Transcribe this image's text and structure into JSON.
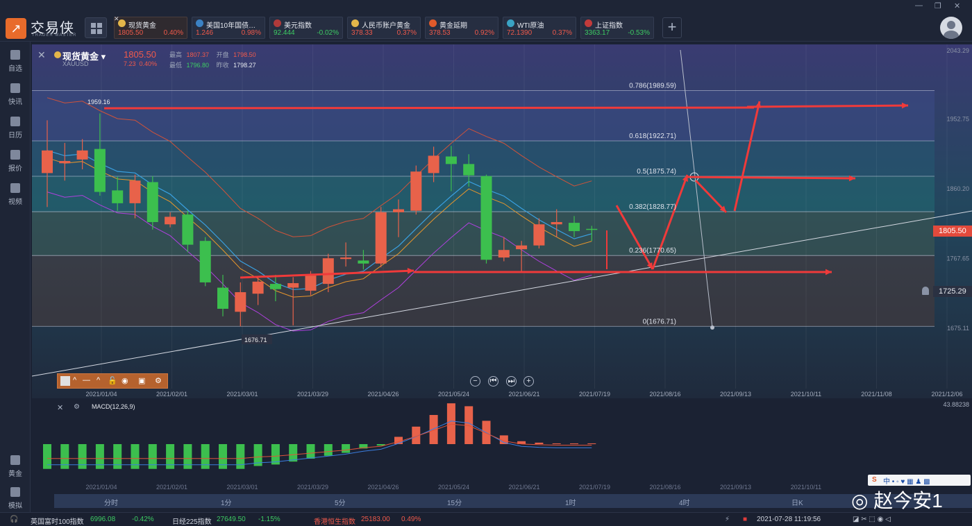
{
  "app": {
    "logo_text": "交易侠",
    "logo_sub": "TRADER MASTER",
    "window_controls": [
      "—",
      "❐",
      "✕"
    ]
  },
  "tickers": [
    {
      "name": "现货黄金",
      "price": "1805.50",
      "change": "0.40%",
      "color": "#f05a4b",
      "icon": "gold-coin-icon",
      "active": true
    },
    {
      "name": "美国10年国债…",
      "price": "1.246",
      "change": "0.98%",
      "color": "#f05a4b",
      "icon": "bar-chart-icon"
    },
    {
      "name": "美元指数",
      "price": "92.444",
      "change": "-0.02%",
      "color": "#3dcc63",
      "icon": "us-flag-icon"
    },
    {
      "name": "人民币账户黄金",
      "price": "378.33",
      "change": "0.37%",
      "color": "#f05a4b",
      "icon": "gold-coin-icon"
    },
    {
      "name": "黄金延期",
      "price": "378.53",
      "change": "0.92%",
      "color": "#f05a4b",
      "icon": "gold-bar-icon"
    },
    {
      "name": "WTI原油",
      "price": "72.1390",
      "change": "0.37%",
      "color": "#f05a4b",
      "icon": "oil-drop-icon"
    },
    {
      "name": "上证指数",
      "price": "3363.17",
      "change": "-0.53%",
      "color": "#3dcc63",
      "icon": "trend-icon"
    }
  ],
  "sidebar": {
    "top_items": [
      {
        "label": "自选",
        "icon": "star-icon"
      },
      {
        "label": "快讯",
        "icon": "news-icon"
      },
      {
        "label": "日历",
        "icon": "calendar-icon"
      },
      {
        "label": "报价",
        "icon": "quote-icon"
      },
      {
        "label": "视频",
        "icon": "video-icon"
      }
    ],
    "bottom_items": [
      {
        "label": "黄金",
        "icon": "gold-icon"
      },
      {
        "label": "模拟",
        "icon": "wallet-icon"
      }
    ]
  },
  "instrument": {
    "name": "现货黄金",
    "code": "XAUUSD",
    "price": "1805.50",
    "change": "7.23",
    "change_pct": "0.40%",
    "high_label": "最高",
    "high": "1807.37",
    "open_label": "开盘",
    "open": "1798.50",
    "low_label": "最低",
    "low": "1796.80",
    "prev_label": "昨收",
    "prev": "1798.27"
  },
  "price_axis": [
    "2043.29",
    "1952.75",
    "1860.20",
    "1767.65",
    "1675.11"
  ],
  "current_price_tag": "1805.50",
  "alert_price_tag": "1725.29",
  "fib_levels": [
    {
      "label": "0.786(1989.59)"
    },
    {
      "label": "0.618(1922.71)"
    },
    {
      "label": "0.5(1875.74)"
    },
    {
      "label": "0.382(1828.77)"
    },
    {
      "label": "0.236(1770.65)"
    },
    {
      "label": "0(1676.71)"
    }
  ],
  "annotations": {
    "high_label": "1959.16",
    "low_label": "1676.71"
  },
  "date_axis": [
    "2021/01/04",
    "2021/02/01",
    "2021/03/01",
    "2021/03/29",
    "2021/04/26",
    "2021/05/24",
    "2021/06/21",
    "2021/07/19",
    "2021/08/16",
    "2021/09/13",
    "2021/10/11",
    "2021/11/08",
    "2021/12/06"
  ],
  "macd": {
    "title": "MACD(12,26,9)",
    "axis_top": "43.88238",
    "date_axis": [
      "2021/01/04",
      "2021/02/01",
      "2021/03/01",
      "2021/03/29",
      "2021/04/26",
      "2021/05/24",
      "2021/06/21",
      "2021/07/19",
      "2021/08/16",
      "2021/09/13",
      "2021/10/11"
    ]
  },
  "chart_data": {
    "type": "candlestick",
    "title": "",
    "x_unit": "week",
    "ylim": [
      1675.11,
      2043.29
    ],
    "candles": [
      {
        "o": 1880,
        "c": 1910,
        "h": 1950,
        "l": 1835
      },
      {
        "o": 1893,
        "c": 1896,
        "h": 1920,
        "l": 1870
      },
      {
        "o": 1898,
        "c": 1910,
        "h": 1925,
        "l": 1885
      },
      {
        "o": 1912,
        "c": 1855,
        "h": 1959.16,
        "l": 1850
      },
      {
        "o": 1857,
        "c": 1840,
        "h": 1875,
        "l": 1830
      },
      {
        "o": 1840,
        "c": 1870,
        "h": 1878,
        "l": 1820
      },
      {
        "o": 1868,
        "c": 1815,
        "h": 1876,
        "l": 1805
      },
      {
        "o": 1812,
        "c": 1822,
        "h": 1828,
        "l": 1808
      },
      {
        "o": 1825,
        "c": 1785,
        "h": 1830,
        "l": 1775
      },
      {
        "o": 1790,
        "c": 1735,
        "h": 1795,
        "l": 1730
      },
      {
        "o": 1728,
        "c": 1700,
        "h": 1745,
        "l": 1690
      },
      {
        "o": 1696,
        "c": 1722,
        "h": 1735,
        "l": 1676.71
      },
      {
        "o": 1720,
        "c": 1736,
        "h": 1742,
        "l": 1705
      },
      {
        "o": 1733,
        "c": 1726,
        "h": 1745,
        "l": 1710
      },
      {
        "o": 1728,
        "c": 1734,
        "h": 1742,
        "l": 1678
      },
      {
        "o": 1724,
        "c": 1744,
        "h": 1750,
        "l": 1718
      },
      {
        "o": 1733,
        "c": 1767,
        "h": 1773,
        "l": 1722
      },
      {
        "o": 1766,
        "c": 1768,
        "h": 1788,
        "l": 1756
      },
      {
        "o": 1764,
        "c": 1760,
        "h": 1778,
        "l": 1752
      },
      {
        "o": 1760,
        "c": 1828,
        "h": 1835,
        "l": 1755
      },
      {
        "o": 1828,
        "c": 1832,
        "h": 1845,
        "l": 1795
      },
      {
        "o": 1830,
        "c": 1882,
        "h": 1890,
        "l": 1825
      },
      {
        "o": 1880,
        "c": 1903,
        "h": 1915,
        "l": 1868
      },
      {
        "o": 1902,
        "c": 1892,
        "h": 1916,
        "l": 1856
      },
      {
        "o": 1892,
        "c": 1877,
        "h": 1905,
        "l": 1862
      },
      {
        "o": 1876,
        "c": 1765,
        "h": 1878,
        "l": 1760
      },
      {
        "o": 1768,
        "c": 1778,
        "h": 1795,
        "l": 1763
      },
      {
        "o": 1779,
        "c": 1784,
        "h": 1790,
        "l": 1750
      },
      {
        "o": 1784,
        "c": 1812,
        "h": 1820,
        "l": 1780
      },
      {
        "o": 1812,
        "c": 1815,
        "h": 1832,
        "l": 1795
      },
      {
        "o": 1814,
        "c": 1803,
        "h": 1823,
        "l": 1795
      },
      {
        "o": 1806,
        "c": 1805.5,
        "h": 1810,
        "l": 1790
      }
    ],
    "macd_hist": [
      -17,
      -17,
      -17,
      -17,
      -17,
      -17,
      -17,
      -17,
      -17,
      -17,
      -17,
      -17,
      -15,
      -14,
      -12,
      -10,
      -8,
      -6,
      -3,
      -1,
      5,
      12,
      20,
      28,
      26,
      16,
      6,
      2,
      1,
      0.5,
      0.5,
      0.5
    ]
  }
}
